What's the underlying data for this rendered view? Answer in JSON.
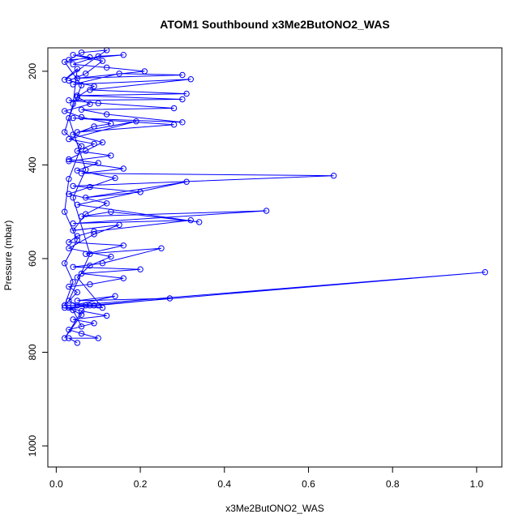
{
  "chart_data": {
    "type": "line",
    "title": "ATOM1 Southbound x3Me2ButONO2_WAS",
    "xlabel": "x3Me2ButONO2_WAS",
    "ylabel": "Pressure (mbar)",
    "xlim": [
      -0.02,
      1.06
    ],
    "ylim": [
      1045,
      150
    ],
    "y_reversed": true,
    "x_ticks": [
      0.0,
      0.2,
      0.4,
      0.6,
      0.8,
      1.0
    ],
    "x_tick_labels": [
      "0.0",
      "0.2",
      "0.4",
      "0.6",
      "0.8",
      "1.0"
    ],
    "y_ticks": [
      200,
      400,
      600,
      800,
      1000
    ],
    "y_tick_labels": [
      "200",
      "400",
      "600",
      "800",
      "1000"
    ],
    "grid": false,
    "marker": "open-circle",
    "series": [
      {
        "color": "#0000ff",
        "points": [
          [
            0.05,
            780
          ],
          [
            0.03,
            770
          ],
          [
            0.1,
            770
          ],
          [
            0.06,
            760
          ],
          [
            0.03,
            752
          ],
          [
            0.09,
            738
          ],
          [
            0.04,
            730
          ],
          [
            0.12,
            722
          ],
          [
            0.06,
            712
          ],
          [
            0.03,
            705
          ],
          [
            0.1,
            700
          ],
          [
            0.27,
            685
          ],
          [
            0.05,
            690
          ],
          [
            0.14,
            680
          ],
          [
            0.04,
            700
          ],
          [
            1.02,
            629
          ],
          [
            0.08,
            700
          ],
          [
            0.02,
            700
          ],
          [
            0.05,
            672
          ],
          [
            0.03,
            660
          ],
          [
            0.08,
            655
          ],
          [
            0.16,
            642
          ],
          [
            0.06,
            632
          ],
          [
            0.2,
            623
          ],
          [
            0.04,
            618
          ],
          [
            0.11,
            610
          ],
          [
            0.25,
            578
          ],
          [
            0.07,
            590
          ],
          [
            0.16,
            572
          ],
          [
            0.03,
            565
          ],
          [
            0.05,
            552
          ],
          [
            0.09,
            542
          ],
          [
            0.32,
            518
          ],
          [
            0.04,
            525
          ],
          [
            0.5,
            498
          ],
          [
            0.06,
            510
          ],
          [
            0.13,
            500
          ],
          [
            0.34,
            522
          ],
          [
            0.05,
            485
          ],
          [
            0.31,
            436
          ],
          [
            0.07,
            470
          ],
          [
            0.2,
            458
          ],
          [
            0.04,
            445
          ],
          [
            0.66,
            423
          ],
          [
            0.06,
            418
          ],
          [
            0.16,
            408
          ],
          [
            0.03,
            392
          ],
          [
            0.13,
            380
          ],
          [
            0.05,
            370
          ],
          [
            0.09,
            355
          ],
          [
            0.03,
            345
          ],
          [
            0.19,
            307
          ],
          [
            0.05,
            330
          ],
          [
            0.28,
            314
          ],
          [
            0.04,
            300
          ],
          [
            0.3,
            309
          ],
          [
            0.12,
            292
          ],
          [
            0.06,
            282
          ],
          [
            0.28,
            279
          ],
          [
            0.1,
            268
          ],
          [
            0.03,
            262
          ],
          [
            0.3,
            260
          ],
          [
            0.05,
            252
          ],
          [
            0.31,
            248
          ],
          [
            0.08,
            240
          ],
          [
            0.32,
            217
          ],
          [
            0.04,
            228
          ],
          [
            0.15,
            205
          ],
          [
            0.3,
            208
          ],
          [
            0.05,
            215
          ],
          [
            0.21,
            200
          ],
          [
            0.12,
            192
          ],
          [
            0.04,
            185
          ],
          [
            0.1,
            168
          ],
          [
            0.16,
            165
          ],
          [
            0.03,
            176
          ],
          [
            0.06,
            160
          ],
          [
            0.12,
            155
          ],
          [
            0.02,
            218
          ],
          [
            0.05,
            195
          ],
          [
            0.04,
            270
          ],
          [
            0.02,
            330
          ],
          [
            0.06,
            360
          ],
          [
            0.03,
            430
          ],
          [
            0.02,
            500
          ],
          [
            0.05,
            560
          ],
          [
            0.02,
            610
          ],
          [
            0.04,
            650
          ],
          [
            0.02,
            700
          ],
          [
            0.06,
            720
          ],
          [
            0.02,
            770
          ],
          [
            0.07,
            700
          ],
          [
            0.11,
            705
          ],
          [
            0.05,
            640
          ],
          [
            0.08,
            615
          ],
          [
            0.13,
            596
          ],
          [
            0.03,
            578
          ],
          [
            0.09,
            548
          ],
          [
            0.15,
            528
          ],
          [
            0.04,
            540
          ],
          [
            0.07,
            505
          ],
          [
            0.12,
            482
          ],
          [
            0.03,
            462
          ],
          [
            0.08,
            447
          ],
          [
            0.14,
            428
          ],
          [
            0.05,
            412
          ],
          [
            0.1,
            396
          ],
          [
            0.03,
            388
          ],
          [
            0.07,
            370
          ],
          [
            0.11,
            352
          ],
          [
            0.04,
            335
          ],
          [
            0.09,
            318
          ],
          [
            0.13,
            312
          ],
          [
            0.06,
            298
          ],
          [
            0.02,
            285
          ],
          [
            0.08,
            270
          ],
          [
            0.05,
            255
          ],
          [
            0.09,
            232
          ],
          [
            0.03,
            220
          ],
          [
            0.07,
            205
          ],
          [
            0.11,
            178
          ],
          [
            0.04,
            165
          ],
          [
            0.08,
            170
          ],
          [
            0.02,
            180
          ],
          [
            0.06,
            230
          ],
          [
            0.03,
            300
          ],
          [
            0.07,
            410
          ],
          [
            0.04,
            470
          ],
          [
            0.08,
            590
          ],
          [
            0.03,
            690
          ],
          [
            0.05,
            700
          ],
          [
            0.09,
            700
          ],
          [
            0.02,
            705
          ],
          [
            0.04,
            710
          ],
          [
            0.06,
            745
          ]
        ]
      }
    ]
  }
}
